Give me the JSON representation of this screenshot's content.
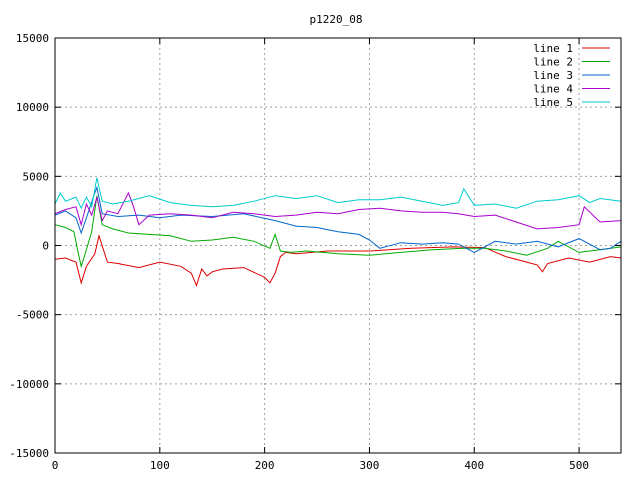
{
  "chart_data": {
    "type": "line",
    "title": "p1220_08",
    "xlabel": "",
    "ylabel": "",
    "xlim": [
      0,
      540
    ],
    "ylim": [
      -15000,
      15000
    ],
    "xticks": [
      0,
      100,
      200,
      300,
      400,
      500
    ],
    "yticks": [
      -15000,
      -10000,
      -5000,
      0,
      5000,
      10000,
      15000
    ],
    "grid": true,
    "legend_position": "top-right",
    "series": [
      {
        "name": "line 1",
        "color": "#dd0000",
        "x": [
          0,
          10,
          20,
          25,
          30,
          38,
          42,
          50,
          60,
          80,
          100,
          120,
          130,
          135,
          140,
          145,
          150,
          160,
          180,
          200,
          205,
          210,
          215,
          220,
          230,
          260,
          300,
          340,
          380,
          410,
          430,
          450,
          460,
          465,
          470,
          490,
          510,
          530,
          540
        ],
        "values": [
          -1000,
          -900,
          -1200,
          -2700,
          -1500,
          -600,
          700,
          -1200,
          -1300,
          -1600,
          -1200,
          -1500,
          -2000,
          -2900,
          -1700,
          -2200,
          -1900,
          -1700,
          -1600,
          -2300,
          -2700,
          -2000,
          -800,
          -500,
          -600,
          -400,
          -400,
          -200,
          -100,
          -150,
          -800,
          -1200,
          -1400,
          -1900,
          -1300,
          -900,
          -1200,
          -800,
          -900
        ]
      },
      {
        "name": "line 2",
        "color": "#00aa00",
        "x": [
          0,
          10,
          18,
          22,
          25,
          28,
          35,
          40,
          45,
          55,
          70,
          90,
          110,
          130,
          150,
          170,
          190,
          205,
          210,
          215,
          225,
          240,
          270,
          300,
          330,
          360,
          390,
          410,
          430,
          450,
          470,
          480,
          500,
          520,
          540
        ],
        "values": [
          1500,
          1300,
          1000,
          -500,
          -1500,
          -800,
          1000,
          3600,
          1500,
          1200,
          900,
          800,
          700,
          300,
          400,
          600,
          300,
          -200,
          800,
          -400,
          -500,
          -400,
          -600,
          -700,
          -500,
          -300,
          -200,
          -200,
          -400,
          -700,
          -200,
          300,
          -500,
          -300,
          -100
        ]
      },
      {
        "name": "line 3",
        "color": "#0066cc",
        "x": [
          0,
          10,
          20,
          25,
          30,
          38,
          40,
          45,
          60,
          80,
          100,
          120,
          150,
          180,
          210,
          230,
          250,
          270,
          290,
          300,
          310,
          330,
          350,
          370,
          385,
          400,
          420,
          440,
          460,
          480,
          500,
          520,
          530,
          540
        ],
        "values": [
          2200,
          2500,
          2000,
          900,
          2000,
          3800,
          4200,
          2300,
          2100,
          2200,
          2000,
          2200,
          2100,
          2300,
          1800,
          1400,
          1300,
          1000,
          800,
          400,
          -200,
          200,
          100,
          200,
          100,
          -500,
          300,
          100,
          300,
          -100,
          500,
          -300,
          -200,
          300
        ]
      },
      {
        "name": "line 4",
        "color": "#aa00cc",
        "x": [
          0,
          10,
          20,
          25,
          30,
          35,
          40,
          45,
          50,
          60,
          70,
          75,
          80,
          90,
          110,
          130,
          150,
          170,
          190,
          210,
          230,
          250,
          270,
          290,
          310,
          330,
          350,
          370,
          385,
          400,
          420,
          440,
          460,
          480,
          500,
          505,
          520,
          540
        ],
        "values": [
          2300,
          2600,
          2800,
          1500,
          3000,
          2200,
          3500,
          1800,
          2500,
          2300,
          3800,
          2800,
          1500,
          2200,
          2300,
          2200,
          2000,
          2400,
          2300,
          2100,
          2200,
          2400,
          2300,
          2600,
          2700,
          2500,
          2400,
          2400,
          2300,
          2100,
          2200,
          1700,
          1200,
          1300,
          1500,
          2800,
          1700,
          1800
        ]
      },
      {
        "name": "line 5",
        "color": "#00cccc",
        "x": [
          0,
          5,
          10,
          20,
          25,
          30,
          35,
          40,
          45,
          55,
          70,
          90,
          110,
          130,
          150,
          170,
          190,
          210,
          230,
          250,
          270,
          290,
          310,
          330,
          350,
          370,
          385,
          390,
          400,
          420,
          440,
          460,
          480,
          500,
          510,
          520,
          540
        ],
        "values": [
          3000,
          3800,
          3200,
          3500,
          2700,
          3500,
          2800,
          4900,
          3200,
          3000,
          3200,
          3600,
          3100,
          2900,
          2800,
          2900,
          3200,
          3600,
          3400,
          3600,
          3100,
          3300,
          3300,
          3500,
          3200,
          2900,
          3100,
          4100,
          2900,
          3000,
          2700,
          3200,
          3300,
          3600,
          3100,
          3400,
          3200
        ]
      }
    ]
  }
}
